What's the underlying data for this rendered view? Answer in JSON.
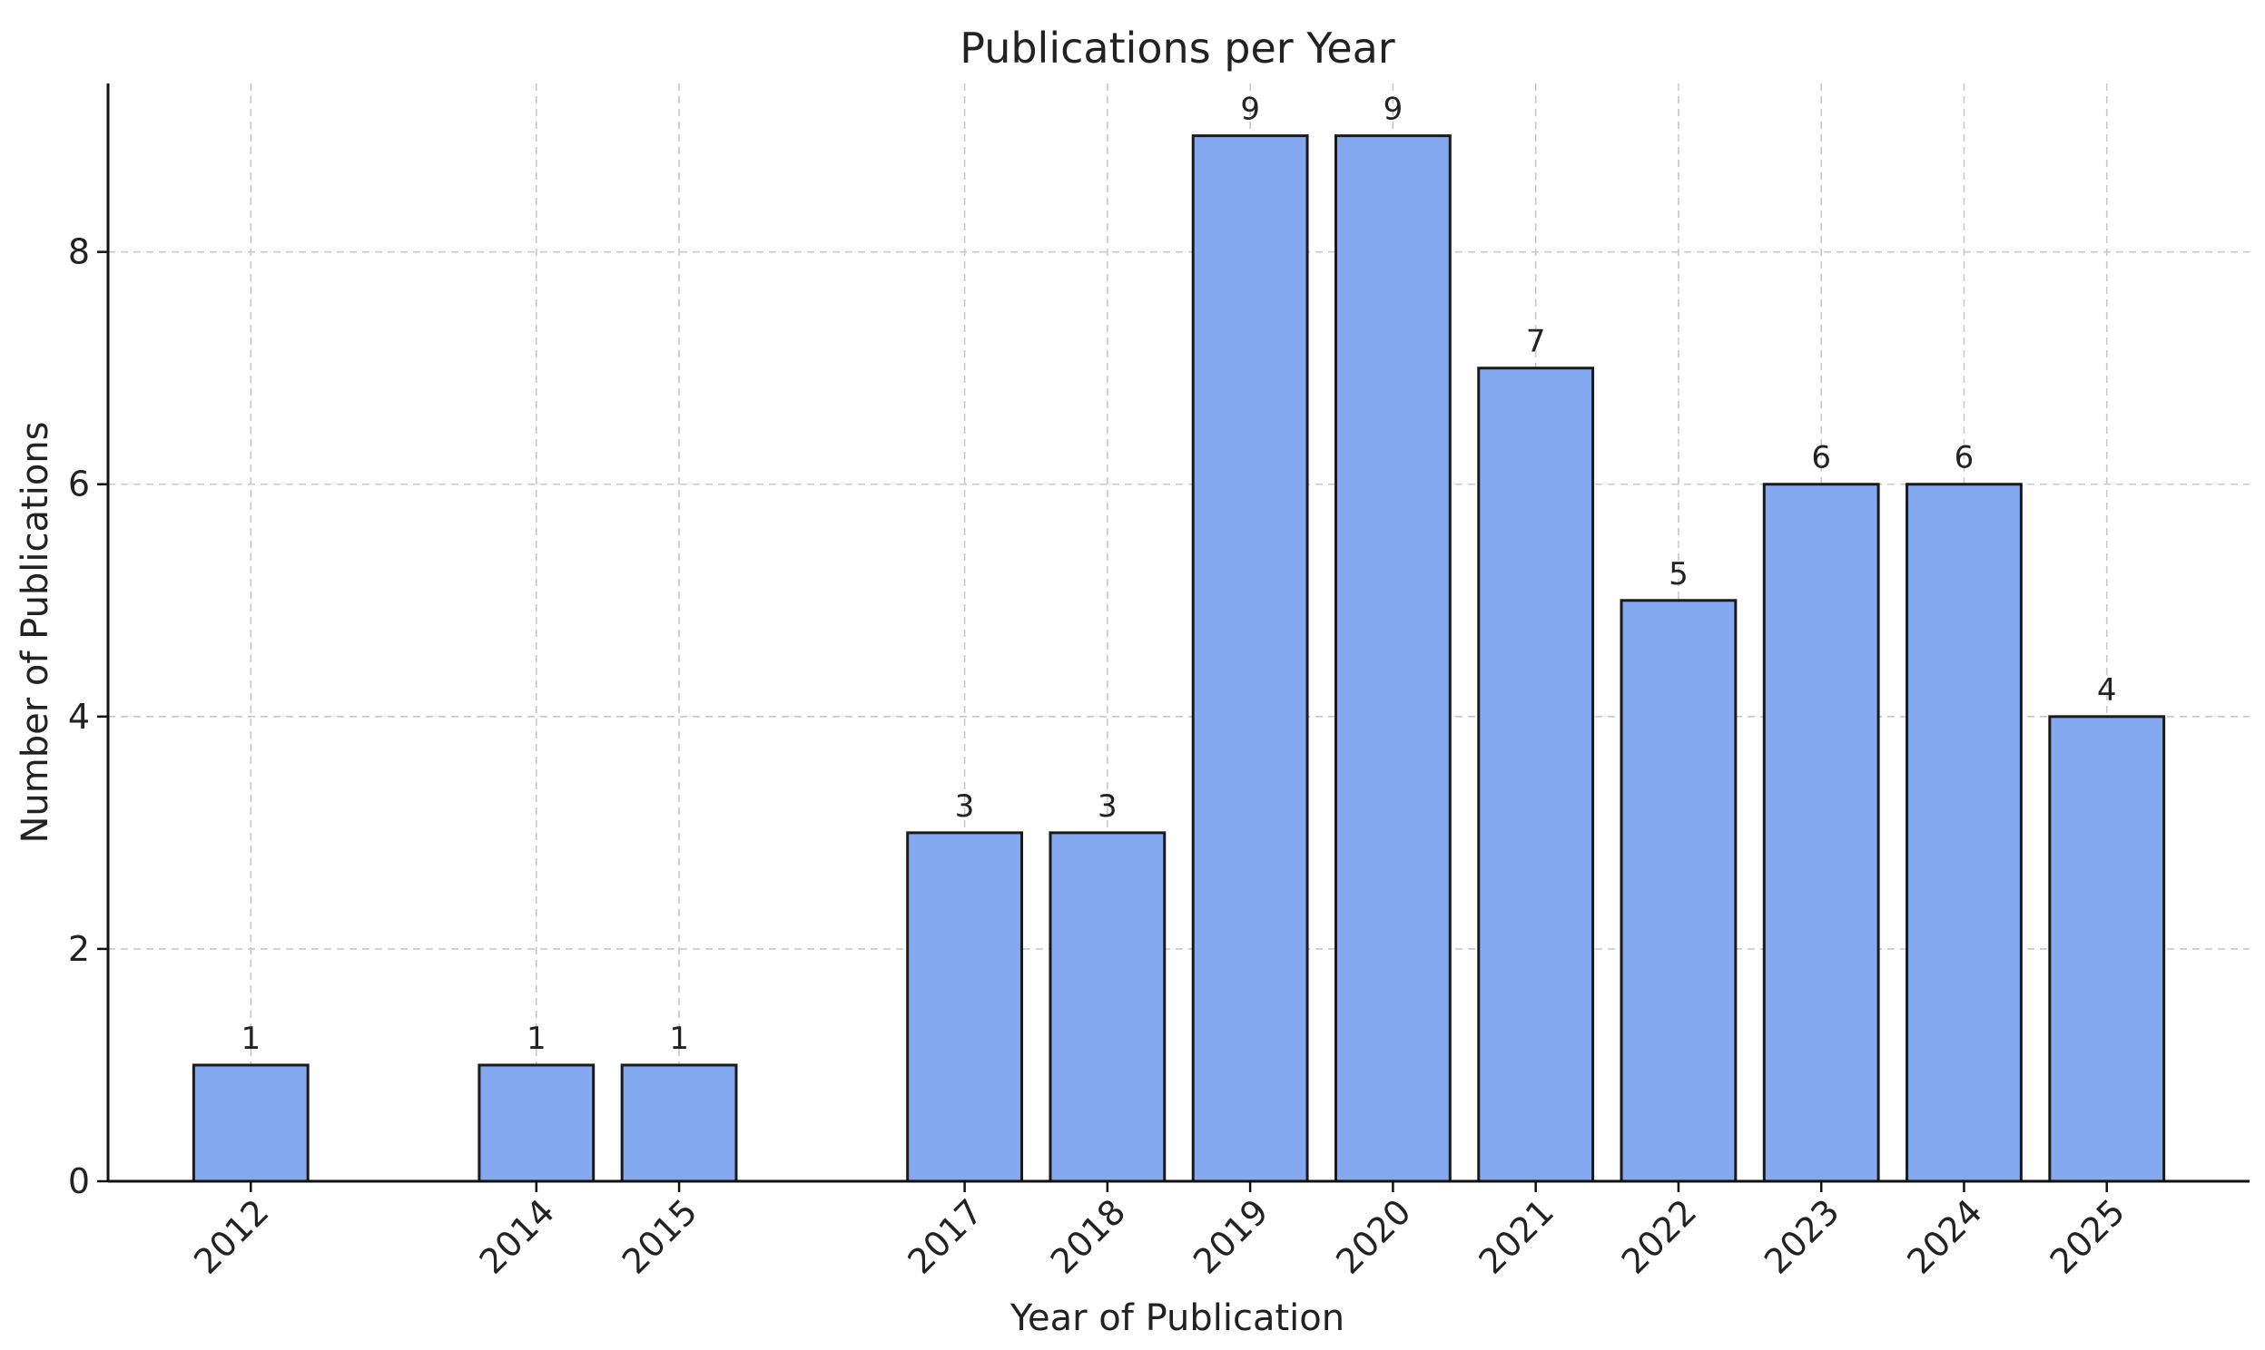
{
  "chart_data": {
    "type": "bar",
    "title": "Publications per Year",
    "xlabel": "Year of Publication",
    "ylabel": "Number of Publications",
    "x": [
      2012,
      2014,
      2015,
      2017,
      2018,
      2019,
      2020,
      2021,
      2022,
      2023,
      2024,
      2025
    ],
    "values": [
      1,
      1,
      1,
      3,
      3,
      9,
      9,
      7,
      5,
      6,
      6,
      4
    ],
    "data_labels": [
      "1",
      "1",
      "1",
      "3",
      "3",
      "9",
      "9",
      "7",
      "5",
      "6",
      "6",
      "4"
    ],
    "xticks": [
      "2012",
      "2014",
      "2015",
      "2017",
      "2018",
      "2019",
      "2020",
      "2021",
      "2022",
      "2023",
      "2024",
      "2025"
    ],
    "xlim": [
      2011,
      2026
    ],
    "yticks": [
      "0",
      "2",
      "4",
      "6",
      "8"
    ],
    "ylim": [
      0,
      9.45
    ],
    "grid": true,
    "bar_color": "#84a9f0",
    "edge_color": "#1a1a1a"
  }
}
